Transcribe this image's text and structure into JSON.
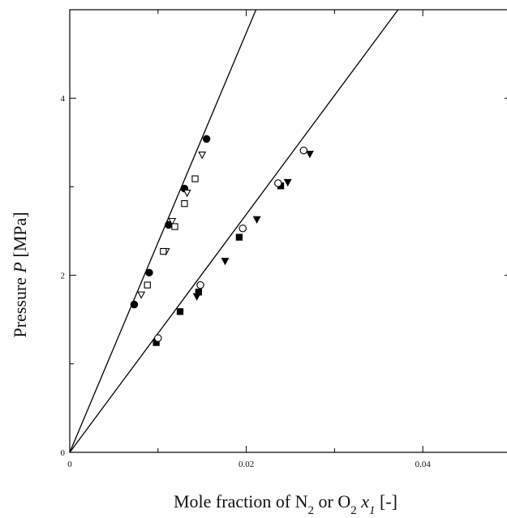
{
  "chart_data": {
    "type": "scatter",
    "xlim": [
      0,
      0.05
    ],
    "ylim": [
      0,
      5
    ],
    "x_ticks": [
      {
        "value": 0,
        "label": "0"
      },
      {
        "value": 0.02,
        "label": "0.02"
      },
      {
        "value": 0.04,
        "label": "0.04"
      }
    ],
    "y_ticks": [
      {
        "value": 0,
        "label": "0"
      },
      {
        "value": 2,
        "label": "2"
      },
      {
        "value": 4,
        "label": "4"
      }
    ],
    "ylabel": {
      "pre": "Pressure ",
      "var": "P",
      "post": " [MPa]"
    },
    "xlabel": {
      "pre": "Mole fraction of N",
      "sub1": "2",
      "mid": " or O",
      "sub2": "2",
      "space": " ",
      "var": "x",
      "varsub": "1",
      "post": " [-]"
    },
    "grid": false,
    "legend": "none",
    "lines": [
      {
        "x": [
          0,
          0.0211
        ],
        "y": [
          0,
          5
        ]
      },
      {
        "x": [
          0,
          0.0372
        ],
        "y": [
          0,
          5
        ]
      }
    ],
    "series": [
      {
        "marker": "filled-circle",
        "x": [
          0.0073,
          0.009,
          0.0112,
          0.013,
          0.0155
        ],
        "y": [
          1.67,
          2.03,
          2.57,
          2.98,
          3.54
        ]
      },
      {
        "marker": "open-down-triangle",
        "x": [
          0.0081,
          0.0109,
          0.0116,
          0.0133,
          0.015
        ],
        "y": [
          1.78,
          2.27,
          2.61,
          2.93,
          3.36
        ]
      },
      {
        "marker": "open-square",
        "x": [
          0.0088,
          0.0106,
          0.0119,
          0.013,
          0.0142
        ],
        "y": [
          1.89,
          2.27,
          2.55,
          2.81,
          3.09
        ]
      },
      {
        "marker": "filled-square",
        "x": [
          0.0098,
          0.0125,
          0.0146,
          0.0192,
          0.0239
        ],
        "y": [
          1.24,
          1.59,
          1.81,
          2.43,
          3.01
        ]
      },
      {
        "marker": "filled-down-triangle",
        "x": [
          0.0144,
          0.0176,
          0.0212,
          0.0247,
          0.0272
        ],
        "y": [
          1.76,
          2.16,
          2.63,
          3.05,
          3.37
        ]
      },
      {
        "marker": "open-circle",
        "x": [
          0.01,
          0.0148,
          0.0196,
          0.0236,
          0.0265
        ],
        "y": [
          1.29,
          1.89,
          2.53,
          3.04,
          3.41
        ]
      }
    ]
  }
}
